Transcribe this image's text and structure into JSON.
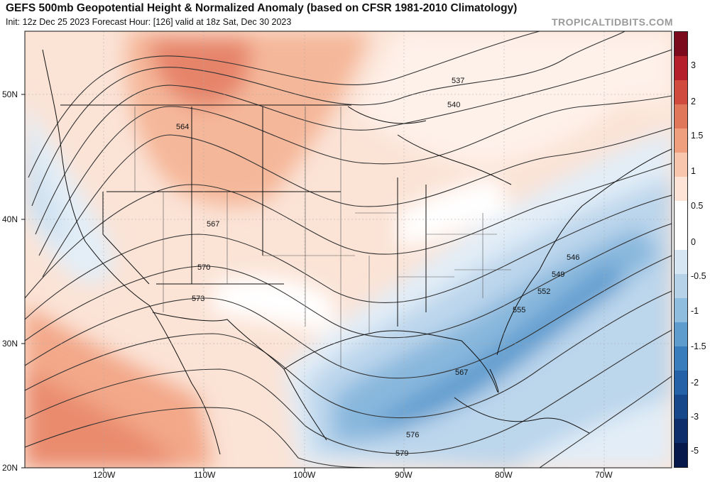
{
  "title": "GEFS 500mb Geopotential Height & Normalized Anomaly (based on CFSR 1981-2010 Climatology)",
  "subtitle": "Init: 12z Dec 25 2023   Forecast Hour: [126]   valid at 18z Sat, Dec 30 2023",
  "source": "TROPICALTIDBITS.COM",
  "lat_labels": [
    "50N",
    "40N",
    "30N",
    "20N"
  ],
  "lon_labels": [
    "120W",
    "110W",
    "100W",
    "90W",
    "80W",
    "70W"
  ],
  "contour_labels": [
    "537",
    "540",
    "564",
    "567",
    "570",
    "573",
    "546",
    "549",
    "552",
    "555",
    "567",
    "576",
    "579"
  ],
  "colorbar": {
    "ticks": [
      "3",
      "2",
      "1.5",
      "1",
      "0.5",
      "0",
      "-0.5",
      "-1",
      "-1.5",
      "-2",
      "-3",
      "-5"
    ],
    "colors": [
      "#7a0a1c",
      "#b51f2c",
      "#d04a3d",
      "#e0775a",
      "#ef9e7e",
      "#f8c6ad",
      "#fde4d6",
      "#ffffff",
      "#ffffff",
      "#d6e6f2",
      "#b5d2e8",
      "#8fbddd",
      "#5f9cce",
      "#3a7dbd",
      "#2461a6",
      "#16478b",
      "#0d2d6b",
      "#06194a"
    ]
  },
  "legend_name": "Normalized Anomaly"
}
